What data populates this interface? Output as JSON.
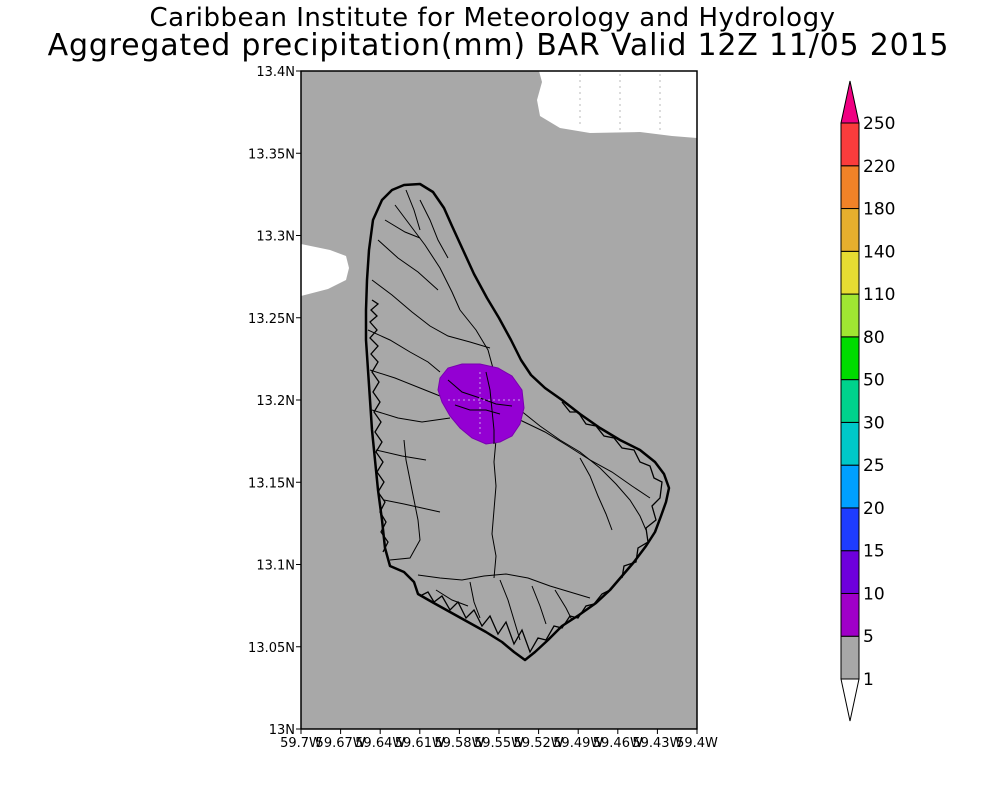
{
  "title": {
    "line1": "Caribbean Institute for Meteorology and Hydrology",
    "line2": "Aggregated precipitation(mm) BAR Valid 12Z 11/05 2015"
  },
  "map": {
    "lat_ticks": [
      "13.4N",
      "13.35N",
      "13.3N",
      "13.25N",
      "13.2N",
      "13.15N",
      "13.1N",
      "13.05N",
      "13N"
    ],
    "lon_ticks": [
      "59.7W",
      "59.67W",
      "59.64W",
      "59.61W",
      "59.58W",
      "59.55W",
      "59.52W",
      "59.49W",
      "59.46W",
      "59.43W",
      "59.4W"
    ],
    "extent": {
      "lon_min": -59.7,
      "lon_max": -59.4,
      "lat_min": 13.0,
      "lat_max": 13.4
    },
    "colors": {
      "background": "#a8a8a8",
      "precip_5_10": "#9400d3",
      "no_data": "#ffffff"
    }
  },
  "colorbar": {
    "labels": [
      "1",
      "5",
      "10",
      "15",
      "20",
      "25",
      "30",
      "50",
      "80",
      "110",
      "140",
      "180",
      "220",
      "250"
    ],
    "colors": [
      "#ffffff",
      "#a8a8a8",
      "#a000c8",
      "#6e00dc",
      "#1e3cff",
      "#00a0ff",
      "#00c8c8",
      "#00d28c",
      "#00dc00",
      "#a0e632",
      "#e6dc32",
      "#e6af2d",
      "#f08228",
      "#fa3c3c",
      "#f00082"
    ]
  }
}
